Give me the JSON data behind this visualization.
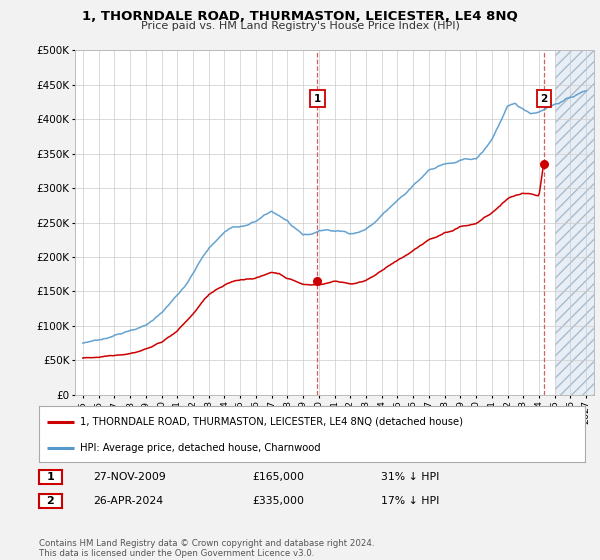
{
  "title": "1, THORNDALE ROAD, THURMASTON, LEICESTER, LE4 8NQ",
  "subtitle": "Price paid vs. HM Land Registry's House Price Index (HPI)",
  "legend_line1": "1, THORNDALE ROAD, THURMASTON, LEICESTER, LE4 8NQ (detached house)",
  "legend_line2": "HPI: Average price, detached house, Charnwood",
  "footnote": "Contains HM Land Registry data © Crown copyright and database right 2024.\nThis data is licensed under the Open Government Licence v3.0.",
  "sale1_label": "1",
  "sale1_date": "27-NOV-2009",
  "sale1_price": "£165,000",
  "sale1_hpi": "31% ↓ HPI",
  "sale1_year": 2009.91,
  "sale1_value": 165000,
  "sale2_label": "2",
  "sale2_date": "26-APR-2024",
  "sale2_price": "£335,000",
  "sale2_hpi": "17% ↓ HPI",
  "sale2_year": 2024.32,
  "sale2_value": 335000,
  "red_color": "#cc0000",
  "blue_color": "#5599cc",
  "background_color": "#f2f2f2",
  "plot_bg_color": "#ffffff",
  "hatch_bg_color": "#e8eef5",
  "ylim": [
    0,
    500000
  ],
  "xlim": [
    1994.5,
    2027.5
  ],
  "hatch_start": 2025.0,
  "yticks": [
    0,
    50000,
    100000,
    150000,
    200000,
    250000,
    300000,
    350000,
    400000,
    450000,
    500000
  ],
  "ytick_labels": [
    "£0",
    "£50K",
    "£100K",
    "£150K",
    "£200K",
    "£250K",
    "£300K",
    "£350K",
    "£400K",
    "£450K",
    "£500K"
  ],
  "xticks": [
    1995,
    1996,
    1997,
    1998,
    1999,
    2000,
    2001,
    2002,
    2003,
    2004,
    2005,
    2006,
    2007,
    2008,
    2009,
    2010,
    2011,
    2012,
    2013,
    2014,
    2015,
    2016,
    2017,
    2018,
    2019,
    2020,
    2021,
    2022,
    2023,
    2024,
    2025,
    2026,
    2027
  ],
  "hpi_base": [
    [
      1995.0,
      75000
    ],
    [
      1995.5,
      76000
    ],
    [
      1996.0,
      80000
    ],
    [
      1996.5,
      83000
    ],
    [
      1997.0,
      88000
    ],
    [
      1997.5,
      92000
    ],
    [
      1998.0,
      97000
    ],
    [
      1998.5,
      100000
    ],
    [
      1999.0,
      105000
    ],
    [
      1999.5,
      112000
    ],
    [
      2000.0,
      122000
    ],
    [
      2000.5,
      135000
    ],
    [
      2001.0,
      148000
    ],
    [
      2001.5,
      162000
    ],
    [
      2002.0,
      180000
    ],
    [
      2002.5,
      200000
    ],
    [
      2003.0,
      215000
    ],
    [
      2003.5,
      228000
    ],
    [
      2004.0,
      240000
    ],
    [
      2004.5,
      248000
    ],
    [
      2005.0,
      248000
    ],
    [
      2005.5,
      250000
    ],
    [
      2006.0,
      255000
    ],
    [
      2006.5,
      262000
    ],
    [
      2007.0,
      268000
    ],
    [
      2007.5,
      262000
    ],
    [
      2008.0,
      255000
    ],
    [
      2008.5,
      242000
    ],
    [
      2009.0,
      232000
    ],
    [
      2009.5,
      233000
    ],
    [
      2010.0,
      238000
    ],
    [
      2010.5,
      240000
    ],
    [
      2011.0,
      238000
    ],
    [
      2011.5,
      237000
    ],
    [
      2012.0,
      235000
    ],
    [
      2012.5,
      237000
    ],
    [
      2013.0,
      242000
    ],
    [
      2013.5,
      250000
    ],
    [
      2014.0,
      262000
    ],
    [
      2014.5,
      272000
    ],
    [
      2015.0,
      282000
    ],
    [
      2015.5,
      290000
    ],
    [
      2016.0,
      302000
    ],
    [
      2016.5,
      312000
    ],
    [
      2017.0,
      325000
    ],
    [
      2017.5,
      330000
    ],
    [
      2018.0,
      335000
    ],
    [
      2018.5,
      335000
    ],
    [
      2019.0,
      338000
    ],
    [
      2019.5,
      340000
    ],
    [
      2020.0,
      340000
    ],
    [
      2020.5,
      352000
    ],
    [
      2021.0,
      368000
    ],
    [
      2021.5,
      392000
    ],
    [
      2022.0,
      415000
    ],
    [
      2022.5,
      418000
    ],
    [
      2023.0,
      410000
    ],
    [
      2023.5,
      405000
    ],
    [
      2024.0,
      408000
    ],
    [
      2024.5,
      415000
    ],
    [
      2025.0,
      420000
    ],
    [
      2025.5,
      425000
    ],
    [
      2026.0,
      430000
    ],
    [
      2026.5,
      435000
    ],
    [
      2027.0,
      440000
    ]
  ],
  "red_base": [
    [
      1995.0,
      53000
    ],
    [
      1995.5,
      54000
    ],
    [
      1996.0,
      55000
    ],
    [
      1996.5,
      57000
    ],
    [
      1997.0,
      59000
    ],
    [
      1997.5,
      61000
    ],
    [
      1998.0,
      63000
    ],
    [
      1998.5,
      66000
    ],
    [
      1999.0,
      70000
    ],
    [
      1999.5,
      74000
    ],
    [
      2000.0,
      80000
    ],
    [
      2000.5,
      88000
    ],
    [
      2001.0,
      96000
    ],
    [
      2001.5,
      108000
    ],
    [
      2002.0,
      120000
    ],
    [
      2002.5,
      135000
    ],
    [
      2003.0,
      148000
    ],
    [
      2003.5,
      155000
    ],
    [
      2004.0,
      160000
    ],
    [
      2004.5,
      165000
    ],
    [
      2005.0,
      168000
    ],
    [
      2005.5,
      170000
    ],
    [
      2006.0,
      172000
    ],
    [
      2006.5,
      175000
    ],
    [
      2007.0,
      180000
    ],
    [
      2007.5,
      178000
    ],
    [
      2008.0,
      172000
    ],
    [
      2008.5,
      168000
    ],
    [
      2009.0,
      163000
    ],
    [
      2009.5,
      162000
    ],
    [
      2010.0,
      163000
    ],
    [
      2010.5,
      165000
    ],
    [
      2011.0,
      168000
    ],
    [
      2011.5,
      167000
    ],
    [
      2012.0,
      165000
    ],
    [
      2012.5,
      166000
    ],
    [
      2013.0,
      170000
    ],
    [
      2013.5,
      178000
    ],
    [
      2014.0,
      185000
    ],
    [
      2014.5,
      192000
    ],
    [
      2015.0,
      198000
    ],
    [
      2015.5,
      205000
    ],
    [
      2016.0,
      212000
    ],
    [
      2016.5,
      220000
    ],
    [
      2017.0,
      228000
    ],
    [
      2017.5,
      232000
    ],
    [
      2018.0,
      238000
    ],
    [
      2018.5,
      240000
    ],
    [
      2019.0,
      245000
    ],
    [
      2019.5,
      248000
    ],
    [
      2020.0,
      250000
    ],
    [
      2020.5,
      258000
    ],
    [
      2021.0,
      265000
    ],
    [
      2021.5,
      275000
    ],
    [
      2022.0,
      285000
    ],
    [
      2022.5,
      290000
    ],
    [
      2023.0,
      292000
    ],
    [
      2023.5,
      290000
    ],
    [
      2024.0,
      285000
    ],
    [
      2024.32,
      335000
    ]
  ]
}
